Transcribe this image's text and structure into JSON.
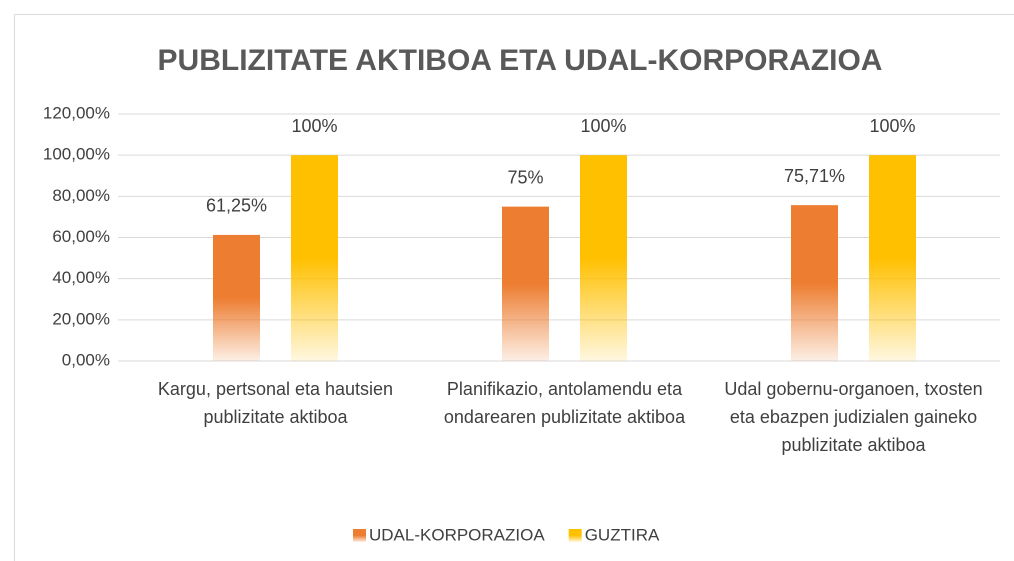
{
  "chart_data": {
    "type": "bar",
    "title": "PUBLIZITATE AKTIBOA ETA UDAL-KORPORAZIOA",
    "categories": [
      "Kargu, pertsonal eta hautsien publizitate aktiboa",
      "Planifikazio, antolamendu eta ondarearen publizitate aktiboa",
      "Udal gobernu-organoen, txosten eta ebazpen judizialen gaineko publizitate aktiboa"
    ],
    "series": [
      {
        "name": "UDAL-KORPORAZIOA",
        "color": "#ed7d31",
        "values": [
          61.25,
          75,
          75.71
        ],
        "value_labels": [
          "61,25%",
          "75%",
          "75,71%"
        ]
      },
      {
        "name": "GUZTIRA",
        "color": "#ffc000",
        "values": [
          100,
          100,
          100
        ],
        "value_labels": [
          "100%",
          "100%",
          "100%"
        ]
      }
    ],
    "ylim": [
      0,
      120
    ],
    "yticks": [
      {
        "value": 0,
        "label": "0,00%"
      },
      {
        "value": 20,
        "label": "20,00%"
      },
      {
        "value": 40,
        "label": "40,00%"
      },
      {
        "value": 60,
        "label": "60,00%"
      },
      {
        "value": 80,
        "label": "80,00%"
      },
      {
        "value": 100,
        "label": "100,00%"
      },
      {
        "value": 120,
        "label": "120,00%"
      }
    ],
    "grid": true,
    "legend": "bottom"
  }
}
